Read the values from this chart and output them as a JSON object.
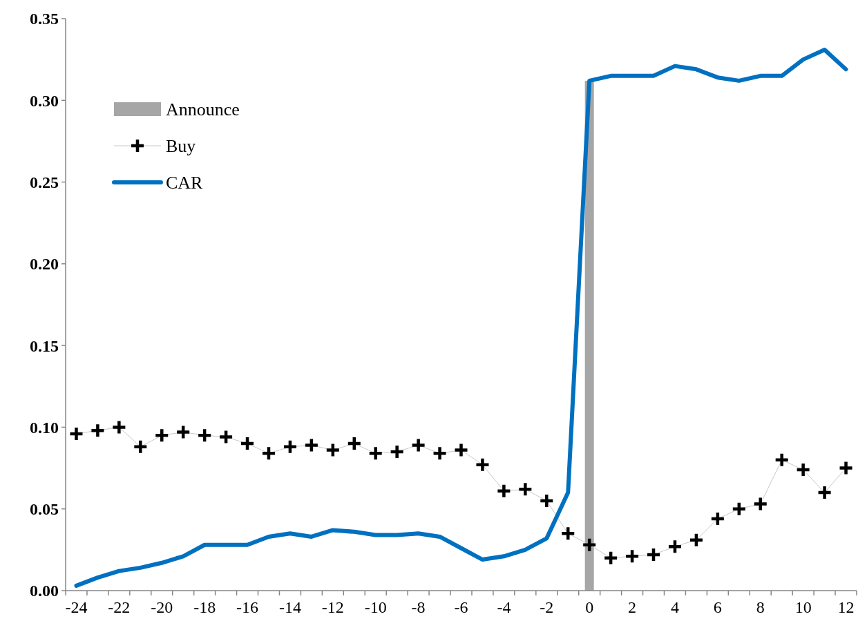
{
  "chart_data": {
    "type": "line",
    "categories": [
      "-24",
      null,
      "-22",
      null,
      "-20",
      null,
      "-18",
      null,
      "-16",
      null,
      "-14",
      null,
      "-12",
      null,
      "-10",
      null,
      "-8",
      null,
      "-6",
      null,
      "-4",
      null,
      "-2",
      null,
      "0",
      null,
      "2",
      null,
      "4",
      null,
      "6",
      null,
      "8",
      null,
      "10",
      null,
      "12"
    ],
    "series": [
      {
        "name": "Announce",
        "type": "bar",
        "color": "#a6a6a6",
        "values": [
          null,
          null,
          null,
          null,
          null,
          null,
          null,
          null,
          null,
          null,
          null,
          null,
          null,
          null,
          null,
          null,
          null,
          null,
          null,
          null,
          null,
          null,
          null,
          null,
          0.312,
          null,
          null,
          null,
          null,
          null,
          null,
          null,
          null,
          null,
          null,
          null,
          null
        ]
      },
      {
        "name": "Buy",
        "color": "#000000",
        "marker": "cross",
        "values": [
          0.096,
          0.098,
          0.1,
          0.088,
          0.095,
          0.097,
          0.095,
          0.094,
          0.09,
          0.084,
          0.088,
          0.089,
          0.086,
          0.09,
          0.084,
          0.085,
          0.089,
          0.084,
          0.086,
          0.077,
          0.061,
          0.062,
          0.055,
          0.035,
          0.028,
          0.02,
          0.021,
          0.022,
          0.027,
          0.031,
          0.044,
          0.05,
          0.053,
          0.08,
          0.074,
          0.06,
          0.075
        ]
      },
      {
        "name": "CAR",
        "color": "#0070c0",
        "marker": "none",
        "values": [
          0.003,
          0.008,
          0.012,
          0.014,
          0.017,
          0.021,
          0.028,
          0.028,
          0.028,
          0.033,
          0.035,
          0.033,
          0.037,
          0.036,
          0.034,
          0.034,
          0.035,
          0.033,
          0.026,
          0.019,
          0.021,
          0.025,
          0.032,
          0.06,
          0.312,
          0.315,
          0.315,
          0.315,
          0.321,
          0.319,
          0.314,
          0.312,
          0.315,
          0.315,
          0.325,
          0.331,
          0.319
        ]
      }
    ],
    "ylim": [
      0,
      0.35
    ],
    "yticks": [
      {
        "value": 0,
        "label": "0.00"
      },
      {
        "value": 0.05,
        "label": "0.05"
      },
      {
        "value": 0.1,
        "label": "0.10"
      },
      {
        "value": 0.15,
        "label": "0.15"
      },
      {
        "value": 0.2,
        "label": "0.20"
      },
      {
        "value": 0.25,
        "label": "0.25"
      },
      {
        "value": 0.3,
        "label": "0.30"
      },
      {
        "value": 0.35,
        "label": "0.35"
      }
    ],
    "legend": "top left",
    "grid": false
  }
}
